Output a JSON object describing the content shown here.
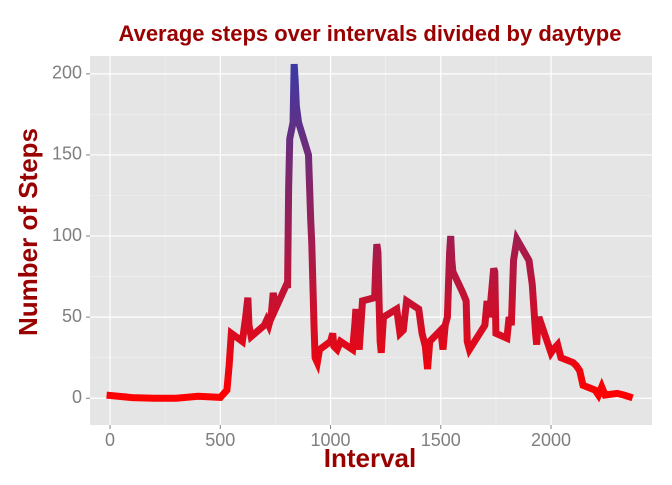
{
  "chart_data": {
    "type": "line",
    "title": "Average steps over intervals divided by daytype",
    "x_label": "Interval",
    "y_label": "Number of Steps",
    "x": [
      0,
      100,
      200,
      300,
      400,
      500,
      530,
      540,
      550,
      600,
      615,
      625,
      630,
      640,
      700,
      710,
      720,
      730,
      740,
      750,
      800,
      805,
      810,
      815,
      830,
      835,
      840,
      845,
      850,
      855,
      900,
      905,
      910,
      915,
      920,
      925,
      930,
      940,
      950,
      1000,
      1010,
      1015,
      1030,
      1045,
      1100,
      1110,
      1115,
      1120,
      1130,
      1145,
      1200,
      1205,
      1210,
      1215,
      1220,
      1225,
      1230,
      1240,
      1300,
      1315,
      1330,
      1345,
      1400,
      1415,
      1430,
      1440,
      1450,
      1500,
      1510,
      1520,
      1530,
      1540,
      1545,
      1550,
      1555,
      1600,
      1615,
      1620,
      1630,
      1700,
      1710,
      1720,
      1730,
      1740,
      1745,
      1750,
      1800,
      1810,
      1820,
      1830,
      1845,
      1900,
      1915,
      1930,
      1935,
      1940,
      1945,
      2000,
      2010,
      2030,
      2045,
      2100,
      2115,
      2130,
      2145,
      2200,
      2215,
      2230,
      2245,
      2300,
      2330,
      2355
    ],
    "series": [
      {
        "values": [
          1.7,
          0.4,
          0,
          0,
          1.2,
          0.5,
          5,
          20,
          40,
          35,
          50,
          62,
          45,
          38,
          45,
          48,
          45,
          50,
          65,
          55,
          70,
          68,
          130,
          160,
          170,
          206,
          195,
          180,
          175,
          170,
          150,
          130,
          110,
          95,
          70,
          45,
          25,
          22,
          30,
          35,
          40,
          32,
          30,
          35,
          30,
          45,
          55,
          40,
          30,
          60,
          62,
          82,
          95,
          90,
          60,
          35,
          28,
          50,
          55,
          40,
          42,
          60,
          55,
          40,
          32,
          18,
          35,
          42,
          30,
          45,
          50,
          90,
          100,
          85,
          78,
          65,
          60,
          35,
          30,
          45,
          60,
          50,
          65,
          80,
          78,
          40,
          37,
          50,
          45,
          85,
          98,
          85,
          70,
          40,
          33,
          45,
          50,
          28,
          30,
          33,
          25,
          22,
          20,
          17,
          8,
          5,
          2,
          7,
          2,
          3,
          2,
          0.9
        ]
      }
    ],
    "color_low": "#ff0000",
    "color_high": "#3b3ba6",
    "xlim": [
      -91,
      2458
    ],
    "ylim": [
      -16.5,
      211
    ],
    "xticks": [
      0,
      500,
      1000,
      1500,
      2000
    ],
    "yticks": [
      0,
      50,
      100,
      150,
      200
    ],
    "grid": true
  }
}
